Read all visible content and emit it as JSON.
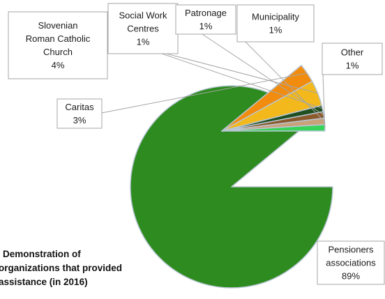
{
  "chart_data": {
    "type": "pie",
    "exploded": true,
    "title_lines": [
      "Demonstration of",
      "organizations that provided",
      "assistance (in 2016)"
    ],
    "slices": [
      {
        "name": "Pensioners associations",
        "value": 89,
        "label_lines": [
          "Pensioners",
          "associations",
          "89%"
        ],
        "color": "#2e8b1f"
      },
      {
        "name": "Caritas",
        "value": 3,
        "label_lines": [
          "Caritas",
          "3%"
        ],
        "color": "#f28c0f"
      },
      {
        "name": "Slovenian Roman Catholic Church",
        "value": 4,
        "label_lines": [
          "Slovenian",
          "Roman Catholic",
          "Church",
          "4%"
        ],
        "color": "#f2b81c"
      },
      {
        "name": "Social Work Centres",
        "value": 1,
        "label_lines": [
          "Social Work",
          "Centres",
          "1%"
        ],
        "color": "#1f4e1f"
      },
      {
        "name": "Patronage",
        "value": 1,
        "label_lines": [
          "Patronage",
          "1%"
        ],
        "color": "#8b5a2b"
      },
      {
        "name": "Municipality",
        "value": 1,
        "label_lines": [
          "Municipality",
          "1%"
        ],
        "color": "#c9a27a"
      },
      {
        "name": "Other",
        "value": 1,
        "label_lines": [
          "Other",
          "1%"
        ],
        "color": "#3ad35a"
      }
    ]
  }
}
